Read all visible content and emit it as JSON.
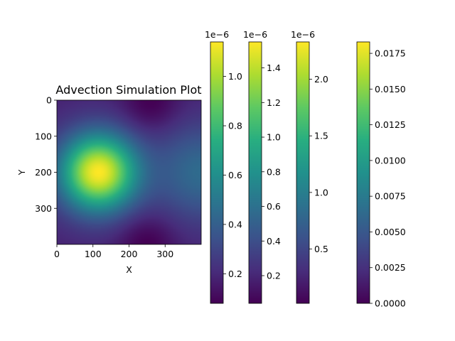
{
  "chart_data": {
    "type": "heatmap",
    "title": "Advection Simulation Plot",
    "xlabel": "X",
    "ylabel": "Y",
    "grid_size": [
      400,
      400
    ],
    "xlim": [
      0,
      400
    ],
    "ylim": [
      400,
      0
    ],
    "x_ticks": [
      "0",
      "100",
      "200",
      "300"
    ],
    "y_ticks": [
      "0",
      "100",
      "200",
      "300"
    ],
    "colormap": "viridis",
    "field": {
      "description_free": true,
      "peak_center": [
        115,
        200
      ],
      "peak_sigma": 75,
      "secondary_center": [
        400,
        200
      ],
      "secondary_sigma": 95,
      "dark_spots": [
        [
          260,
          10
        ],
        [
          250,
          395
        ]
      ]
    },
    "colorbars": [
      {
        "offset_label": "1e−6",
        "min": 0.08,
        "max": 1.14,
        "ticks": [
          0.2,
          0.4,
          0.6,
          0.8,
          1.0
        ],
        "tick_labels": [
          "0.2",
          "0.4",
          "0.6",
          "0.8",
          "1.0"
        ]
      },
      {
        "offset_label": "1e−6",
        "min": 0.04,
        "max": 1.55,
        "ticks": [
          0.2,
          0.4,
          0.6,
          0.8,
          1.0,
          1.2,
          1.4
        ],
        "tick_labels": [
          "0.2",
          "0.4",
          "0.6",
          "0.8",
          "1.0",
          "1.2",
          "1.4"
        ]
      },
      {
        "offset_label": "1e−6",
        "min": 0.02,
        "max": 2.33,
        "ticks": [
          0.5,
          1.0,
          1.5,
          2.0
        ],
        "tick_labels": [
          "0.5",
          "1.0",
          "1.5",
          "2.0"
        ]
      },
      {
        "offset_label": "",
        "min": 0.0,
        "max": 0.0183,
        "ticks": [
          0.0,
          0.0025,
          0.005,
          0.0075,
          0.01,
          0.0125,
          0.015,
          0.0175
        ],
        "tick_labels": [
          "0.0000",
          "0.0025",
          "0.0050",
          "0.0075",
          "0.0100",
          "0.0125",
          "0.0150",
          "0.0175"
        ]
      }
    ]
  }
}
